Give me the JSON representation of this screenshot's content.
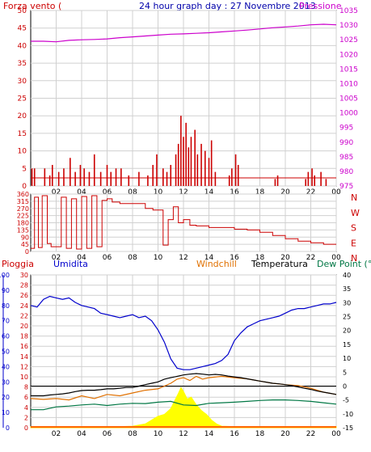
{
  "header": {
    "left_label": "Forza vento (",
    "title": "24 hour graph day : 27 Novembre 2013",
    "right_label": "Pressione"
  },
  "colors": {
    "wind": "#cc0000",
    "pressure": "#cc00cc",
    "humidity": "#0000cc",
    "windchill": "#e07000",
    "temperature": "#000000",
    "dewpoint": "#007744",
    "rain": "#ffff00",
    "grid": "#d0d0d0"
  },
  "panel3_labels": {
    "rain": "Pioggia",
    "humidity": "Umidita",
    "windchill": "Windchill",
    "temperature": "Temperatura",
    "dewpoint": "Dew Point (°C"
  },
  "chart_data": [
    {
      "type": "line",
      "name": "wind-pressure",
      "x_ticks": [
        "02",
        "04",
        "06",
        "08",
        "10",
        "12",
        "14",
        "16",
        "18",
        "20",
        "22",
        "00"
      ],
      "y_left_ticks": [
        0,
        5,
        10,
        15,
        20,
        25,
        30,
        35,
        40,
        45,
        50
      ],
      "y_right_ticks": [
        975,
        980,
        985,
        990,
        995,
        1000,
        1005,
        1010,
        1015,
        1020,
        1025,
        1030,
        1035
      ],
      "ylim_left": [
        0,
        50
      ],
      "ylim_right": [
        975,
        1035
      ],
      "series": [
        {
          "name": "Pressione",
          "x": [
            0,
            1,
            2,
            3,
            4,
            5,
            6,
            7,
            8,
            9,
            10,
            11,
            12,
            13,
            14,
            15,
            16,
            17,
            18,
            19,
            20,
            21,
            22,
            23,
            24
          ],
          "values": [
            1024.5,
            1024.5,
            1024.3,
            1024.8,
            1025.0,
            1025.1,
            1025.3,
            1025.7,
            1026.0,
            1026.3,
            1026.6,
            1026.9,
            1027.0,
            1027.2,
            1027.4,
            1027.7,
            1028.0,
            1028.3,
            1028.7,
            1029.1,
            1029.4,
            1029.7,
            1030.1,
            1030.3,
            1030.1
          ]
        },
        {
          "name": "Forza vento",
          "x": [
            0.1,
            0.3,
            1.1,
            1.5,
            1.7,
            2.2,
            2.6,
            3.1,
            3.5,
            3.9,
            4.2,
            4.6,
            5.0,
            5.5,
            6.0,
            6.3,
            6.7,
            7.1,
            7.7,
            8.5,
            9.2,
            9.6,
            9.9,
            10.4,
            10.7,
            11.0,
            11.4,
            11.6,
            11.8,
            12.0,
            12.2,
            12.4,
            12.6,
            12.9,
            13.1,
            13.4,
            13.7,
            14.0,
            14.2,
            14.5,
            15.6,
            15.8,
            16.1,
            16.3,
            19.2,
            19.4,
            21.6,
            21.8,
            22.1,
            22.3,
            22.8,
            23.2
          ],
          "values": [
            5,
            5,
            5,
            3,
            6,
            4,
            5,
            8,
            4,
            6,
            5,
            4,
            9,
            4,
            6,
            4,
            5,
            5,
            3,
            4,
            3,
            6,
            9,
            5,
            4,
            6,
            9,
            12,
            20,
            14,
            18,
            11,
            14,
            16,
            9,
            12,
            10,
            8,
            13,
            4,
            3,
            5,
            9,
            6,
            2,
            3,
            2,
            4,
            5,
            3,
            4,
            2
          ]
        }
      ]
    },
    {
      "type": "line",
      "name": "wind-direction",
      "x_ticks": [
        "02",
        "04",
        "06",
        "08",
        "10",
        "12",
        "14",
        "16",
        "18",
        "20",
        "22",
        "00"
      ],
      "y_ticks": [
        0,
        45,
        90,
        135,
        180,
        225,
        270,
        315,
        360
      ],
      "right_labels": [
        "N",
        "W",
        "S",
        "E",
        "N"
      ],
      "ylim": [
        0,
        360
      ],
      "x": [
        0,
        0.3,
        0.6,
        0.9,
        1.3,
        1.6,
        2.0,
        2.4,
        2.8,
        3.2,
        3.6,
        4.0,
        4.4,
        4.8,
        5.2,
        5.6,
        6.0,
        6.4,
        7.0,
        8.0,
        9.0,
        9.6,
        10.4,
        10.8,
        11.2,
        11.6,
        12.0,
        12.5,
        13.0,
        14.0,
        15.0,
        16.0,
        17.0,
        18.0,
        19.0,
        20.0,
        21.0,
        22.0,
        23.0,
        24.0
      ],
      "values": [
        20,
        340,
        25,
        350,
        50,
        30,
        30,
        340,
        20,
        330,
        15,
        345,
        20,
        350,
        30,
        320,
        330,
        310,
        300,
        300,
        270,
        260,
        40,
        200,
        280,
        180,
        200,
        165,
        160,
        150,
        150,
        140,
        135,
        120,
        100,
        80,
        65,
        55,
        45,
        45
      ]
    },
    {
      "type": "area",
      "name": "temp-humidity-rain",
      "x_ticks": [
        "02",
        "04",
        "06",
        "08",
        "10",
        "12",
        "14",
        "16",
        "18",
        "20",
        "22",
        "00"
      ],
      "y_humidity_ticks": [
        0,
        10,
        20,
        30,
        40,
        50,
        60,
        70,
        80,
        90,
        100
      ],
      "y_rain_ticks": [
        0,
        2,
        4,
        6,
        8,
        10,
        12,
        14,
        16,
        18,
        20,
        22,
        24,
        26,
        28,
        30
      ],
      "y_temp_ticks": [
        -15,
        -10,
        -5,
        0,
        5,
        10,
        15,
        20,
        25,
        30,
        35,
        40
      ],
      "ylim_humidity": [
        0,
        100
      ],
      "ylim_temp": [
        -15,
        40
      ],
      "series": [
        {
          "name": "Umidita",
          "x": [
            0,
            0.5,
            1,
            1.5,
            2,
            2.5,
            3,
            3.5,
            4,
            4.5,
            5,
            5.5,
            6,
            6.5,
            7,
            7.5,
            8,
            8.5,
            9,
            9.5,
            10,
            10.5,
            11,
            11.5,
            12,
            12.5,
            13,
            13.5,
            14,
            14.5,
            15,
            15.5,
            16,
            16.5,
            17,
            17.5,
            18,
            18.5,
            19,
            19.5,
            20,
            20.5,
            21,
            21.5,
            22,
            22.5,
            23,
            23.5,
            24
          ],
          "values": [
            80,
            79,
            84,
            86,
            85,
            84,
            85,
            82,
            80,
            79,
            78,
            75,
            74,
            73,
            72,
            73,
            74,
            72,
            73,
            70,
            64,
            56,
            45,
            39,
            38,
            38,
            39,
            40,
            41,
            42,
            44,
            48,
            57,
            62,
            66,
            68,
            70,
            71,
            72,
            73,
            75,
            77,
            78,
            78,
            79,
            80,
            81,
            81,
            82
          ]
        },
        {
          "name": "Temperatura",
          "x": [
            0,
            0.5,
            1,
            1.5,
            2,
            2.5,
            3,
            3.5,
            4,
            4.5,
            5,
            5.5,
            6,
            6.5,
            7,
            7.5,
            8,
            8.5,
            9,
            9.5,
            10,
            10.5,
            11,
            11.5,
            12,
            12.5,
            13,
            13.5,
            14,
            14.5,
            15,
            15.5,
            16,
            16.5,
            17,
            17.5,
            18,
            18.5,
            19,
            19.5,
            20,
            20.5,
            21,
            21.5,
            22,
            22.5,
            23,
            23.5,
            24
          ],
          "values": [
            -3.5,
            -3.5,
            -3.5,
            -3.2,
            -3.0,
            -2.8,
            -2.5,
            -2.0,
            -1.6,
            -1.5,
            -1.5,
            -1.3,
            -1.0,
            -1.0,
            -0.8,
            -0.5,
            -0.5,
            0.0,
            0.5,
            1.0,
            1.5,
            2.5,
            3.0,
            3.5,
            4.0,
            4.3,
            4.5,
            4.3,
            4.0,
            4.2,
            4.0,
            3.6,
            3.3,
            3.0,
            2.6,
            2.2,
            1.8,
            1.4,
            1.0,
            0.8,
            0.5,
            0.2,
            -0.3,
            -0.8,
            -1.2,
            -1.8,
            -2.2,
            -2.6,
            -3.0
          ]
        },
        {
          "name": "Windchill",
          "x": [
            0,
            1,
            2,
            3,
            4,
            5,
            6,
            7,
            8,
            9,
            10,
            11,
            11.5,
            12,
            12.5,
            13,
            13.5,
            14,
            15,
            16,
            17,
            18,
            19,
            20,
            21,
            22,
            23,
            24
          ],
          "values": [
            -4.5,
            -4.8,
            -4.5,
            -5.0,
            -3.5,
            -4.5,
            -3.0,
            -3.5,
            -2.5,
            -1.5,
            -1.0,
            1.0,
            2.5,
            3.0,
            2.0,
            3.5,
            2.5,
            3.0,
            3.5,
            3.0,
            2.6,
            1.8,
            1.0,
            0.5,
            0.2,
            -0.8,
            -2.2,
            -3.0
          ]
        },
        {
          "name": "Dew Point",
          "x": [
            0,
            1,
            2,
            3,
            4,
            5,
            6,
            7,
            8,
            9,
            10,
            11,
            12,
            13,
            14,
            15,
            16,
            17,
            18,
            19,
            20,
            21,
            22,
            23,
            24
          ],
          "values": [
            -8.5,
            -8.5,
            -7.5,
            -7.2,
            -6.8,
            -6.5,
            -7.0,
            -6.5,
            -6.2,
            -6.3,
            -5.8,
            -5.5,
            -6.8,
            -7.0,
            -6.2,
            -6.0,
            -5.8,
            -5.5,
            -5.2,
            -5.0,
            -5.0,
            -5.2,
            -5.5,
            -6.0,
            -6.5
          ]
        },
        {
          "name": "Pioggia",
          "x": [
            0,
            7,
            8,
            9,
            9.5,
            10,
            10.5,
            11,
            11.3,
            11.6,
            11.8,
            12.0,
            12.3,
            12.6,
            13,
            13.4,
            13.8,
            14.2,
            14.6,
            15,
            16,
            24
          ],
          "values": [
            0.3,
            0.3,
            0.4,
            1.0,
            2.0,
            3.0,
            3.5,
            5.0,
            7.0,
            9.0,
            10.5,
            9.5,
            7.5,
            8.0,
            6.0,
            4.5,
            3.5,
            2.0,
            1.0,
            0.4,
            0.3,
            0.3
          ]
        }
      ]
    }
  ]
}
